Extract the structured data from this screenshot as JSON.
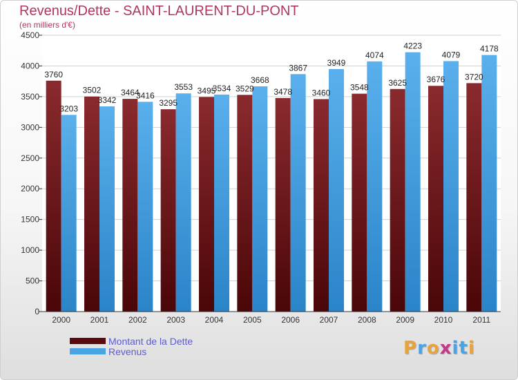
{
  "header": {
    "title": "Revenus/Dette - SAINT-LAURENT-DU-PONT",
    "subtitle": "(en milliers d'€)"
  },
  "chart_data": {
    "type": "bar",
    "categories": [
      "2000",
      "2001",
      "2002",
      "2003",
      "2004",
      "2005",
      "2006",
      "2007",
      "2008",
      "2009",
      "2010",
      "2011"
    ],
    "series": [
      {
        "name": "Montant de la Dette",
        "values": [
          3760,
          3502,
          3464,
          3295,
          3495,
          3529,
          3478,
          3460,
          3548,
          3625,
          3676,
          3720
        ],
        "color": "#7a1c20"
      },
      {
        "name": "Revenus",
        "values": [
          3203,
          3342,
          3416,
          3553,
          3534,
          3668,
          3867,
          3949,
          4074,
          4223,
          4079,
          4178
        ],
        "color": "#4aa3e3"
      }
    ],
    "ylim": [
      0,
      4500
    ],
    "yticks": [
      0,
      500,
      1000,
      1500,
      2000,
      2500,
      3000,
      3500,
      4000,
      4500
    ],
    "grid": true,
    "legend_position": "bottom-left"
  },
  "logo": {
    "letters": [
      "P",
      "r",
      "o",
      "x",
      "i",
      "t",
      "i"
    ],
    "colors": [
      "#e8a33b",
      "#4aa3e3",
      "#e8a33b",
      "#c8388a",
      "#4aa3e3",
      "#4aa3e3",
      "#e8a33b"
    ]
  }
}
